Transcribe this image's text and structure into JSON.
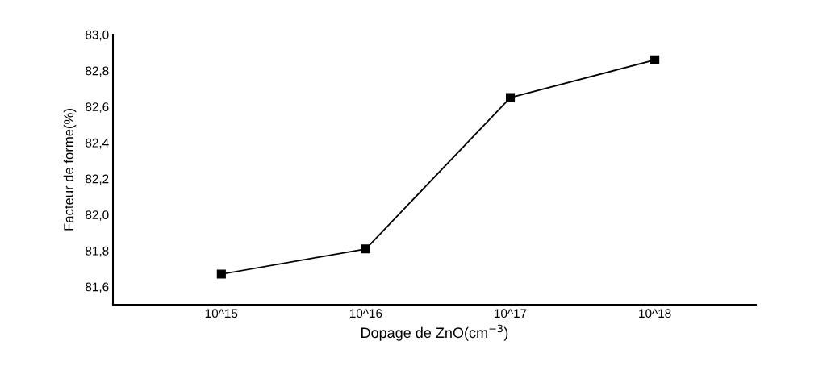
{
  "chart_data": {
    "type": "line",
    "xlabel": "Dopage de ZnO(cm$^{−3}$)",
    "ylabel": "Facteur de forme(%)",
    "categories": [
      "10^15",
      "10^16",
      "10^17",
      "10^18"
    ],
    "series": [
      {
        "color": "#000000",
        "values": [
          81.67,
          81.81,
          82.65,
          82.86
        ]
      }
    ],
    "ylim": [
      81.5,
      83.0
    ],
    "yticks": [
      {
        "value": 81.6,
        "label": "81,6"
      },
      {
        "value": 81.8,
        "label": "81,8"
      },
      {
        "value": 82.0,
        "label": "82,0"
      },
      {
        "value": 82.2,
        "label": "82,2"
      },
      {
        "value": 82.4,
        "label": "82,4"
      },
      {
        "value": 82.6,
        "label": "82,6"
      },
      {
        "value": 82.8,
        "label": "82,8"
      },
      {
        "value": 83.0,
        "label": "83,0"
      }
    ],
    "marker": "square",
    "line_style": "solid",
    "grid": false,
    "legend": false
  }
}
